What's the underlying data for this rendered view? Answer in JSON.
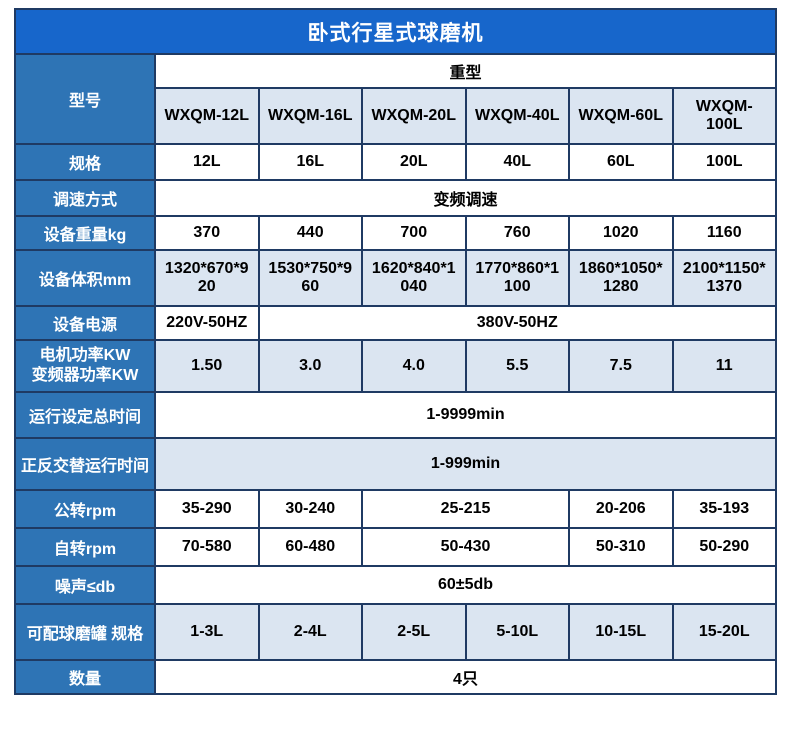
{
  "page_title": "卧式行星式球磨机",
  "colors": {
    "title_bar": "#1766cb",
    "header_cell": "#2e74b5",
    "row_alt": "#dbe5f1",
    "border": "#1f3a63"
  },
  "table": {
    "labels": {
      "model": "型号",
      "type_header": "重型",
      "spec": "规格",
      "speed_mode": "调速方式",
      "weight": "设备重量kg",
      "volume": "设备体积mm",
      "power_supply": "设备电源",
      "motor_power_line1": "电机功率KW",
      "motor_power_line2": "变频器功率KW",
      "total_time": "运行设定总时间",
      "alternate_time": "正反交替运行时间",
      "revolution": "公转rpm",
      "rotation": "自转rpm",
      "noise": "噪声≤db",
      "jar_spec": "可配球磨罐 规格",
      "quantity": "数量"
    },
    "models": [
      "WXQM-12L",
      "WXQM-16L",
      "WXQM-20L",
      "WXQM-40L",
      "WXQM-60L",
      "WXQM-100L"
    ],
    "spec": [
      "12L",
      "16L",
      "20L",
      "40L",
      "60L",
      "100L"
    ],
    "speed_mode": "变频调速",
    "weight": [
      "370",
      "440",
      "700",
      "760",
      "1020",
      "1160"
    ],
    "volume": [
      "1320*670*920",
      "1530*750*960",
      "1620*840*1040",
      "1770*860*1100",
      "1860*1050*1280",
      "2100*1150*1370"
    ],
    "power_supply": [
      "220V-50HZ",
      "380V-50HZ"
    ],
    "motor_power": [
      "1.50",
      "3.0",
      "4.0",
      "5.5",
      "7.5",
      "11"
    ],
    "total_time": "1-9999min",
    "alternate_time": "1-999min",
    "revolution": [
      "35-290",
      "30-240",
      "25-215",
      "20-206",
      "35-193"
    ],
    "rotation": [
      "70-580",
      "60-480",
      "50-430",
      "50-310",
      "50-290"
    ],
    "noise": "60±5db",
    "jar_spec": [
      "1-3L",
      "2-4L",
      "2-5L",
      "5-10L",
      "10-15L",
      "15-20L"
    ],
    "quantity": "4只"
  }
}
